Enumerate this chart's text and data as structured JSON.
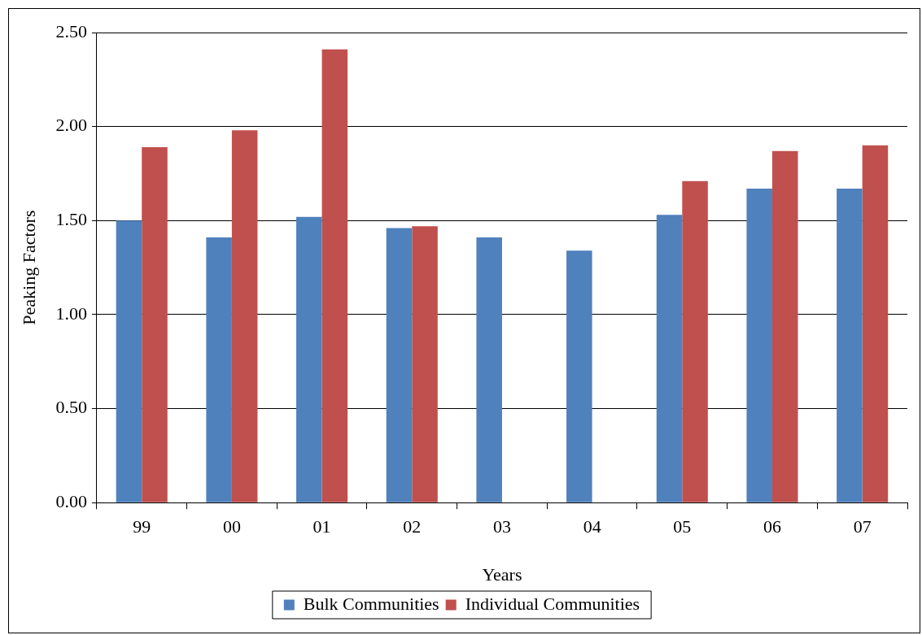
{
  "chart_data": {
    "type": "bar",
    "xlabel": "Years",
    "ylabel": "Peaking Factors",
    "categories": [
      "99",
      "00",
      "01",
      "02",
      "03",
      "04",
      "05",
      "06",
      "07"
    ],
    "series": [
      {
        "name": "Bulk Communities",
        "color": "#4f81bd",
        "values": [
          1.5,
          1.41,
          1.52,
          1.46,
          1.41,
          1.34,
          1.53,
          1.67,
          1.67
        ]
      },
      {
        "name": "Individual Communities",
        "color": "#c0504d",
        "values": [
          1.89,
          1.98,
          2.41,
          1.47,
          null,
          null,
          1.71,
          1.87,
          1.9
        ]
      }
    ],
    "ylim": [
      0,
      2.5
    ],
    "yticks": [
      {
        "value": 0,
        "label": "0.00"
      },
      {
        "value": 0.5,
        "label": "0.50"
      },
      {
        "value": 1,
        "label": "1.00"
      },
      {
        "value": 1.5,
        "label": "1.50"
      },
      {
        "value": 2,
        "label": "2.00"
      },
      {
        "value": 2.5,
        "label": "2.50"
      }
    ],
    "grid": "y",
    "legend": "bottom"
  }
}
